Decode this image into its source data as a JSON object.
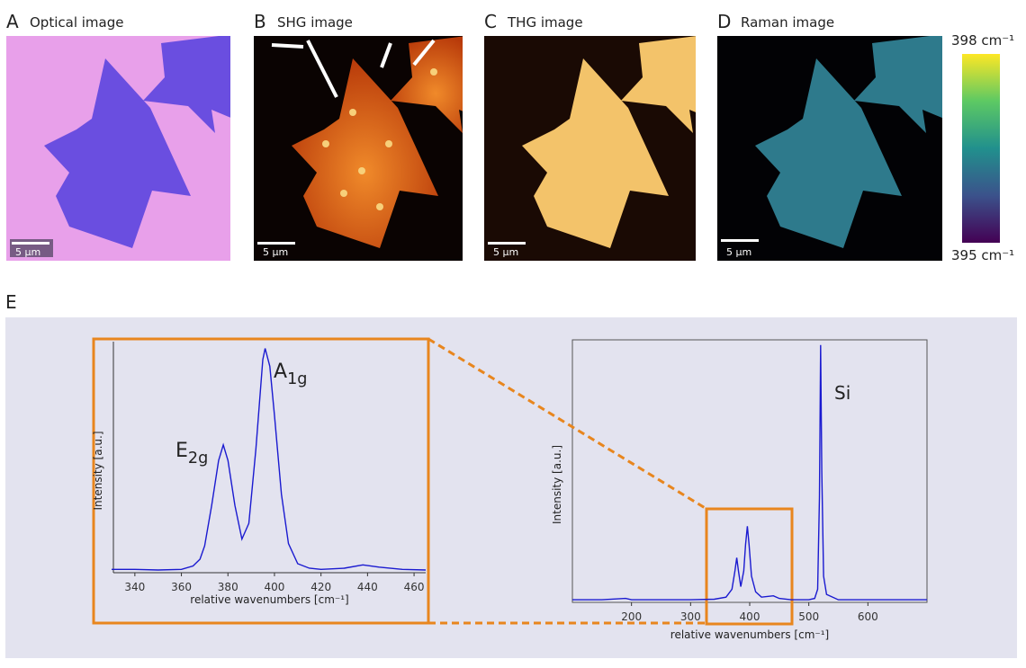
{
  "panels": [
    {
      "letter": "A",
      "title": "Optical image",
      "scale_bar": "5 µm"
    },
    {
      "letter": "B",
      "title": "SHG image",
      "scale_bar": "5 µm"
    },
    {
      "letter": "C",
      "title": "THG image",
      "scale_bar": "5 µm"
    },
    {
      "letter": "D",
      "title": "Raman image",
      "scale_bar": "5 µm"
    }
  ],
  "colorbar": {
    "max": "398 cm⁻¹",
    "min": "395 cm⁻¹"
  },
  "panel_e": {
    "letter": "E"
  },
  "chart_data": [
    {
      "type": "line",
      "x_label": "relative wavenumbers [cm⁻¹]",
      "y_label": "Intensity [a.u.]",
      "xlim": [
        330,
        465
      ],
      "ylim": [
        0,
        1.03
      ],
      "xticks": [
        340,
        360,
        380,
        400,
        420,
        440,
        460
      ],
      "annotations": [
        {
          "text": "E",
          "sub": "2g"
        },
        {
          "text": "A",
          "sub": "1g"
        }
      ],
      "series": [
        {
          "color": "#1a1ad0",
          "x": [
            330,
            340,
            350,
            360,
            365,
            368,
            370,
            373,
            376,
            378,
            380,
            383,
            386,
            389,
            392,
            395,
            396,
            398,
            400,
            403,
            406,
            410,
            415,
            420,
            430,
            438,
            445,
            455,
            465
          ],
          "values": [
            0.015,
            0.015,
            0.012,
            0.015,
            0.03,
            0.06,
            0.12,
            0.3,
            0.5,
            0.57,
            0.5,
            0.3,
            0.15,
            0.22,
            0.55,
            0.95,
            1.0,
            0.92,
            0.7,
            0.35,
            0.13,
            0.04,
            0.02,
            0.015,
            0.02,
            0.035,
            0.025,
            0.015,
            0.012
          ]
        }
      ]
    },
    {
      "type": "line",
      "x_label": "relative wavenumbers [cm⁻¹]",
      "y_label": "Intensity [a.u.]",
      "xlim": [
        100,
        700
      ],
      "ylim": [
        0,
        1
      ],
      "xticks": [
        200,
        300,
        400,
        500,
        600
      ],
      "annotations": [
        {
          "text": "Si"
        }
      ],
      "series": [
        {
          "color": "#1a1ad0",
          "x": [
            100,
            150,
            190,
            200,
            250,
            300,
            340,
            360,
            370,
            375,
            378,
            381,
            385,
            390,
            393,
            396,
            399,
            403,
            410,
            420,
            440,
            450,
            470,
            500,
            510,
            515,
            518,
            520,
            522,
            525,
            530,
            550,
            600,
            650,
            700
          ],
          "values": [
            0.01,
            0.01,
            0.015,
            0.01,
            0.01,
            0.01,
            0.012,
            0.02,
            0.05,
            0.12,
            0.17,
            0.12,
            0.06,
            0.12,
            0.22,
            0.29,
            0.22,
            0.1,
            0.04,
            0.02,
            0.025,
            0.015,
            0.01,
            0.01,
            0.015,
            0.05,
            0.4,
            0.98,
            0.5,
            0.1,
            0.03,
            0.01,
            0.01,
            0.01,
            0.01
          ]
        }
      ]
    }
  ]
}
